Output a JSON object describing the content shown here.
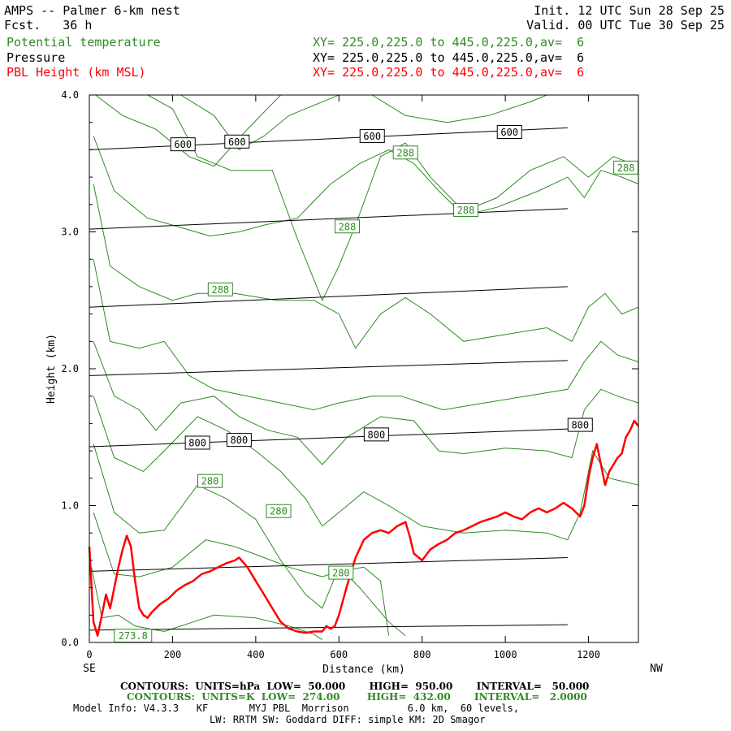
{
  "header": {
    "title": "AMPS -- Palmer 6-km nest",
    "fcst": "Fcst.   36 h",
    "init": "Init. 12 UTC Sun 28 Sep 25",
    "valid": "Valid. 00 UTC Tue 30 Sep 25",
    "fields": [
      {
        "name": "Potential temperature",
        "xy": "XY= 225.0,225.0 to 445.0,225.0,av=  6",
        "color": "#2e8b22"
      },
      {
        "name": "Pressure",
        "xy": "XY= 225.0,225.0 to 445.0,225.0,av=  6",
        "color": "#000000"
      },
      {
        "name": "PBL Height (km MSL)",
        "xy": "XY= 225.0,225.0 to 445.0,225.0,av=  6",
        "color": "#ff0000"
      }
    ]
  },
  "footer": {
    "contours_black": "CONTOURS:  UNITS=hPa  LOW=  50.000       HIGH=  950.00       INTERVAL=   50.000",
    "contours_green": "CONTOURS:  UNITS=K  LOW=  274.00        HIGH=  432.00       INTERVAL=   2.0000",
    "model_info": "Model Info: V4.3.3   KF       MYJ PBL  Morrison          6.0 km,  60 levels,",
    "model_info2": "LW: RRTM SW: Goddard DIFF: simple KM: 2D Smagor"
  },
  "chart_data": {
    "type": "line",
    "xlabel": "Distance (km)",
    "ylabel": "Height (km)",
    "xlim": [
      0,
      1320
    ],
    "ylim": [
      0,
      4.0
    ],
    "x_ticks": [
      0,
      200,
      400,
      600,
      800,
      1000,
      1200
    ],
    "y_ticks": [
      "0.0",
      "1.0",
      "2.0",
      "3.0",
      "4.0"
    ],
    "left_end_label": "SE",
    "right_end_label": "NW",
    "grid": false,
    "colors": {
      "potential_temperature": "#2e8b22",
      "pressure": "#000000",
      "pbl": "#ff0000"
    },
    "pressure_contours": [
      {
        "points": [
          [
            0,
            0.09
          ],
          [
            1150,
            0.13
          ]
        ]
      },
      {
        "points": [
          [
            0,
            0.52
          ],
          [
            1150,
            0.62
          ]
        ]
      },
      {
        "points": [
          [
            0,
            1.43
          ],
          [
            1150,
            1.56
          ]
        ]
      },
      {
        "points": [
          [
            0,
            1.95
          ],
          [
            1150,
            2.06
          ]
        ]
      },
      {
        "points": [
          [
            0,
            2.45
          ],
          [
            1150,
            2.6
          ]
        ]
      },
      {
        "points": [
          [
            0,
            3.02
          ],
          [
            1150,
            3.17
          ]
        ]
      },
      {
        "points": [
          [
            0,
            3.6
          ],
          [
            1150,
            3.76
          ]
        ]
      }
    ],
    "pressure_labels": [
      {
        "text": "600",
        "x": 225,
        "y": 3.64
      },
      {
        "text": "600",
        "x": 355,
        "y": 3.66
      },
      {
        "text": "600",
        "x": 680,
        "y": 3.7
      },
      {
        "text": "600",
        "x": 1010,
        "y": 3.73
      },
      {
        "text": "800",
        "x": 260,
        "y": 1.46
      },
      {
        "text": "800",
        "x": 360,
        "y": 1.48
      },
      {
        "text": "800",
        "x": 690,
        "y": 1.52
      },
      {
        "text": "800",
        "x": 1180,
        "y": 1.59
      }
    ],
    "theta_contours": [
      {
        "points": [
          [
            5,
            0.55
          ],
          [
            30,
            0.18
          ],
          [
            70,
            0.2
          ],
          [
            110,
            0.12
          ],
          [
            180,
            0.08
          ],
          [
            250,
            0.15
          ],
          [
            300,
            0.2
          ],
          [
            400,
            0.18
          ],
          [
            480,
            0.12
          ],
          [
            540,
            0.06
          ],
          [
            560,
            0.02
          ]
        ]
      },
      {
        "points": [
          [
            10,
            0.95
          ],
          [
            60,
            0.5
          ],
          [
            120,
            0.48
          ],
          [
            200,
            0.55
          ],
          [
            280,
            0.75
          ],
          [
            350,
            0.7
          ],
          [
            420,
            0.62
          ],
          [
            480,
            0.55
          ],
          [
            560,
            0.48
          ],
          [
            600,
            0.52
          ],
          [
            660,
            0.55
          ],
          [
            700,
            0.45
          ],
          [
            720,
            0.05
          ]
        ]
      },
      {
        "points": [
          [
            10,
            1.45
          ],
          [
            60,
            0.95
          ],
          [
            120,
            0.8
          ],
          [
            180,
            0.82
          ],
          [
            260,
            1.15
          ],
          [
            330,
            1.05
          ],
          [
            400,
            0.9
          ],
          [
            460,
            0.6
          ],
          [
            520,
            0.35
          ],
          [
            560,
            0.25
          ],
          [
            580,
            0.4
          ],
          [
            600,
            0.55
          ],
          [
            650,
            0.4
          ],
          [
            720,
            0.15
          ],
          [
            760,
            0.05
          ]
        ]
      },
      {
        "points": [
          [
            10,
            1.8
          ],
          [
            60,
            1.35
          ],
          [
            130,
            1.25
          ],
          [
            180,
            1.4
          ],
          [
            260,
            1.65
          ],
          [
            330,
            1.55
          ],
          [
            400,
            1.4
          ],
          [
            460,
            1.25
          ],
          [
            520,
            1.05
          ],
          [
            560,
            0.85
          ],
          [
            600,
            0.95
          ],
          [
            660,
            1.1
          ],
          [
            720,
            1.0
          ],
          [
            800,
            0.85
          ],
          [
            900,
            0.8
          ],
          [
            1000,
            0.82
          ],
          [
            1100,
            0.8
          ],
          [
            1150,
            0.75
          ],
          [
            1180,
            0.95
          ],
          [
            1210,
            1.4
          ],
          [
            1250,
            1.2
          ],
          [
            1320,
            1.15
          ]
        ]
      },
      {
        "points": [
          [
            10,
            2.2
          ],
          [
            60,
            1.8
          ],
          [
            120,
            1.7
          ],
          [
            160,
            1.55
          ],
          [
            220,
            1.75
          ],
          [
            300,
            1.8
          ],
          [
            360,
            1.65
          ],
          [
            430,
            1.55
          ],
          [
            500,
            1.5
          ],
          [
            560,
            1.3
          ],
          [
            620,
            1.5
          ],
          [
            700,
            1.65
          ],
          [
            780,
            1.62
          ],
          [
            840,
            1.4
          ],
          [
            900,
            1.38
          ],
          [
            1000,
            1.42
          ],
          [
            1100,
            1.4
          ],
          [
            1160,
            1.35
          ],
          [
            1190,
            1.7
          ],
          [
            1230,
            1.85
          ],
          [
            1270,
            1.8
          ],
          [
            1320,
            1.75
          ]
        ]
      },
      {
        "points": [
          [
            10,
            2.8
          ],
          [
            50,
            2.2
          ],
          [
            120,
            2.15
          ],
          [
            180,
            2.2
          ],
          [
            240,
            1.95
          ],
          [
            300,
            1.85
          ],
          [
            380,
            1.8
          ],
          [
            460,
            1.75
          ],
          [
            540,
            1.7
          ],
          [
            600,
            1.75
          ],
          [
            680,
            1.8
          ],
          [
            750,
            1.8
          ],
          [
            850,
            1.7
          ],
          [
            950,
            1.75
          ],
          [
            1050,
            1.8
          ],
          [
            1150,
            1.85
          ],
          [
            1190,
            2.05
          ],
          [
            1230,
            2.2
          ],
          [
            1270,
            2.1
          ],
          [
            1320,
            2.05
          ]
        ]
      },
      {
        "points": [
          [
            10,
            3.35
          ],
          [
            50,
            2.75
          ],
          [
            120,
            2.6
          ],
          [
            200,
            2.5
          ],
          [
            260,
            2.55
          ],
          [
            350,
            2.55
          ],
          [
            450,
            2.5
          ],
          [
            540,
            2.5
          ],
          [
            600,
            2.4
          ],
          [
            640,
            2.15
          ],
          [
            700,
            2.4
          ],
          [
            760,
            2.52
          ],
          [
            820,
            2.4
          ],
          [
            900,
            2.2
          ],
          [
            1000,
            2.25
          ],
          [
            1100,
            2.3
          ],
          [
            1160,
            2.2
          ],
          [
            1200,
            2.45
          ],
          [
            1240,
            2.55
          ],
          [
            1280,
            2.4
          ],
          [
            1320,
            2.45
          ]
        ]
      },
      {
        "points": [
          [
            10,
            3.7
          ],
          [
            60,
            3.3
          ],
          [
            140,
            3.1
          ],
          [
            200,
            3.05
          ],
          [
            290,
            2.97
          ],
          [
            360,
            3.0
          ],
          [
            420,
            3.05
          ],
          [
            500,
            3.1
          ],
          [
            580,
            3.35
          ],
          [
            650,
            3.5
          ],
          [
            720,
            3.6
          ],
          [
            780,
            3.5
          ],
          [
            840,
            3.3
          ],
          [
            900,
            3.12
          ],
          [
            980,
            3.18
          ],
          [
            1080,
            3.3
          ],
          [
            1150,
            3.4
          ],
          [
            1190,
            3.25
          ],
          [
            1230,
            3.45
          ],
          [
            1280,
            3.4
          ],
          [
            1320,
            3.35
          ]
        ]
      },
      {
        "points": [
          [
            15,
            4.0
          ],
          [
            80,
            3.85
          ],
          [
            160,
            3.75
          ],
          [
            240,
            3.55
          ],
          [
            300,
            3.48
          ],
          [
            380,
            3.75
          ],
          [
            460,
            4.0
          ]
        ]
      },
      {
        "points": [
          [
            140,
            4.0
          ],
          [
            200,
            3.9
          ],
          [
            260,
            3.55
          ],
          [
            340,
            3.45
          ],
          [
            440,
            3.45
          ],
          [
            500,
            2.95
          ],
          [
            560,
            2.5
          ],
          [
            600,
            2.75
          ],
          [
            640,
            3.05
          ],
          [
            700,
            3.55
          ],
          [
            760,
            3.65
          ],
          [
            820,
            3.4
          ],
          [
            900,
            3.15
          ],
          [
            980,
            3.25
          ],
          [
            1060,
            3.45
          ],
          [
            1140,
            3.55
          ],
          [
            1200,
            3.4
          ],
          [
            1260,
            3.55
          ],
          [
            1320,
            3.48
          ]
        ]
      },
      {
        "points": [
          [
            220,
            4.0
          ],
          [
            300,
            3.85
          ],
          [
            360,
            3.6
          ],
          [
            420,
            3.7
          ],
          [
            480,
            3.85
          ],
          [
            560,
            3.95
          ],
          [
            600,
            4.0
          ]
        ]
      },
      {
        "points": [
          [
            680,
            4.0
          ],
          [
            760,
            3.85
          ],
          [
            860,
            3.8
          ],
          [
            960,
            3.85
          ],
          [
            1060,
            3.95
          ],
          [
            1100,
            4.0
          ]
        ]
      }
    ],
    "theta_labels": [
      {
        "text": "288",
        "x": 760,
        "y": 3.58
      },
      {
        "text": "288",
        "x": 1290,
        "y": 3.47
      },
      {
        "text": "288",
        "x": 905,
        "y": 3.16
      },
      {
        "text": "288",
        "x": 620,
        "y": 3.04
      },
      {
        "text": "288",
        "x": 315,
        "y": 2.58
      },
      {
        "text": "280",
        "x": 290,
        "y": 1.18
      },
      {
        "text": "280",
        "x": 455,
        "y": 0.96
      },
      {
        "text": "280",
        "x": 605,
        "y": 0.51
      },
      {
        "text": "273.8",
        "x": 105,
        "y": 0.05
      }
    ],
    "pbl_height": {
      "x": [
        0,
        10,
        20,
        30,
        40,
        50,
        60,
        70,
        80,
        90,
        100,
        110,
        120,
        130,
        140,
        150,
        170,
        190,
        210,
        230,
        250,
        270,
        290,
        310,
        330,
        350,
        360,
        380,
        400,
        420,
        440,
        460,
        480,
        500,
        520,
        540,
        560,
        570,
        580,
        590,
        600,
        620,
        640,
        660,
        680,
        700,
        720,
        740,
        760,
        770,
        780,
        800,
        820,
        840,
        860,
        880,
        900,
        920,
        940,
        960,
        980,
        1000,
        1020,
        1040,
        1060,
        1080,
        1100,
        1120,
        1140,
        1160,
        1180,
        1190,
        1200,
        1210,
        1220,
        1230,
        1240,
        1250,
        1260,
        1270,
        1280,
        1290,
        1300,
        1310,
        1320
      ],
      "y": [
        0.7,
        0.15,
        0.05,
        0.2,
        0.35,
        0.25,
        0.4,
        0.55,
        0.68,
        0.78,
        0.7,
        0.45,
        0.25,
        0.2,
        0.18,
        0.22,
        0.28,
        0.32,
        0.38,
        0.42,
        0.45,
        0.5,
        0.52,
        0.55,
        0.58,
        0.6,
        0.62,
        0.55,
        0.45,
        0.35,
        0.25,
        0.15,
        0.1,
        0.08,
        0.07,
        0.08,
        0.08,
        0.12,
        0.1,
        0.12,
        0.2,
        0.42,
        0.62,
        0.75,
        0.8,
        0.82,
        0.8,
        0.85,
        0.88,
        0.78,
        0.65,
        0.6,
        0.68,
        0.72,
        0.75,
        0.8,
        0.82,
        0.85,
        0.88,
        0.9,
        0.92,
        0.95,
        0.92,
        0.9,
        0.95,
        0.98,
        0.95,
        0.98,
        1.02,
        0.98,
        0.92,
        1.0,
        1.2,
        1.35,
        1.45,
        1.3,
        1.15,
        1.25,
        1.3,
        1.35,
        1.38,
        1.5,
        1.55,
        1.62,
        1.58
      ]
    }
  }
}
